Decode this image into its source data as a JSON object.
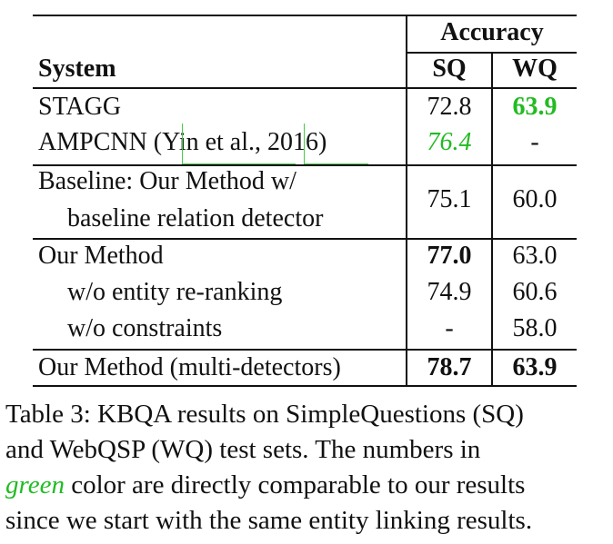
{
  "table": {
    "header": {
      "accuracy": "Accuracy",
      "system": "System",
      "sq": "SQ",
      "wq": "WQ"
    },
    "rows": [
      {
        "system": "STAGG",
        "sq": "72.8",
        "wq": "63.9"
      },
      {
        "system_pre": "AMPCNN (",
        "cite_author": "Yin et al.,",
        "cite_year": "2016",
        "system_post": ")",
        "sq": "76.4",
        "wq": "-"
      },
      {
        "system_line1": "Baseline: Our Method w/",
        "system_line2": "baseline relation detector",
        "sq": "75.1",
        "wq": "60.0"
      },
      {
        "system": "Our Method",
        "sq": "77.0",
        "wq": "63.0"
      },
      {
        "system": "w/o entity re-ranking",
        "sq": "74.9",
        "wq": "60.6"
      },
      {
        "system": "w/o constraints",
        "sq": "-",
        "wq": "58.0"
      },
      {
        "system": "Our Method (multi-detectors)",
        "sq": "78.7",
        "wq": "63.9"
      }
    ],
    "colors": {
      "green": "#22bb22"
    }
  },
  "caption": {
    "line1": "Table 3: KBQA results on SimpleQuestions (SQ)",
    "line2": "and WebQSP (WQ) test sets.  The numbers in",
    "line3_green": "green",
    "line3_rest": " color are directly comparable to our results",
    "line4": "since we start with the same entity linking results."
  }
}
